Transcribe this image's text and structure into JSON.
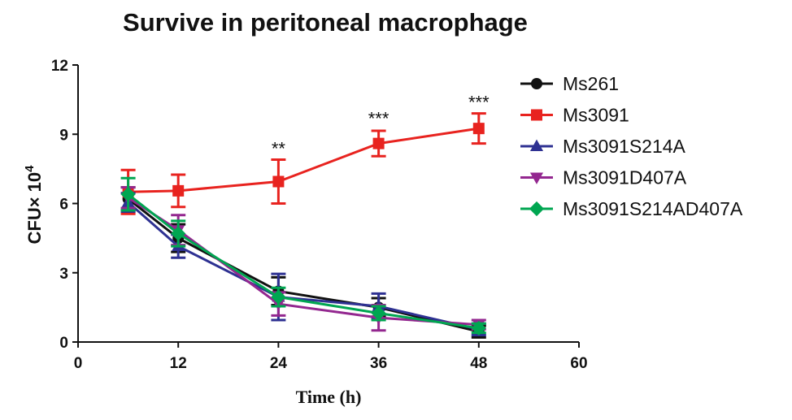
{
  "chart_data": {
    "type": "line",
    "title": "Survive in peritoneal macrophage",
    "xlabel": "Time (h)",
    "ylabel": "CFU× 10",
    "ylabel_superscript": "4",
    "xlim": [
      0,
      60
    ],
    "ylim": [
      0,
      12
    ],
    "xticks": [
      "0",
      "12",
      "24",
      "36",
      "48",
      "60"
    ],
    "yticks": [
      "0",
      "3",
      "6",
      "9",
      "12"
    ],
    "x": [
      6,
      12,
      24,
      36,
      48
    ],
    "series": [
      {
        "name": "Ms261",
        "color": "#111111",
        "marker": "circle",
        "values": [
          6.2,
          4.5,
          2.2,
          1.5,
          0.45
        ],
        "errors": [
          0.5,
          0.6,
          0.6,
          0.4,
          0.25
        ]
      },
      {
        "name": "Ms3091",
        "color": "#e8231f",
        "marker": "square",
        "values": [
          6.5,
          6.55,
          6.95,
          8.6,
          9.25
        ],
        "errors": [
          0.95,
          0.7,
          0.95,
          0.55,
          0.65
        ]
      },
      {
        "name": "Ms3091S214A",
        "color": "#2e3192",
        "marker": "triangle-up",
        "values": [
          6.05,
          4.15,
          1.95,
          1.55,
          0.55
        ],
        "errors": [
          0.4,
          0.5,
          1.0,
          0.55,
          0.25
        ]
      },
      {
        "name": "Ms3091D407A",
        "color": "#93278f",
        "marker": "triangle-down",
        "values": [
          6.25,
          4.85,
          1.65,
          1.05,
          0.75
        ],
        "errors": [
          0.45,
          0.65,
          0.5,
          0.55,
          0.2
        ]
      },
      {
        "name": "Ms3091S214AD407A",
        "color": "#00a651",
        "marker": "diamond",
        "values": [
          6.4,
          4.7,
          1.95,
          1.25,
          0.6
        ],
        "errors": [
          0.7,
          0.55,
          0.4,
          0.3,
          0.2
        ]
      }
    ],
    "annotations": [
      {
        "x": 24,
        "y": 7.9,
        "text": "**"
      },
      {
        "x": 36,
        "y": 9.2,
        "text": "***"
      },
      {
        "x": 48,
        "y": 9.9,
        "text": "***"
      }
    ],
    "legend_position": "right"
  }
}
